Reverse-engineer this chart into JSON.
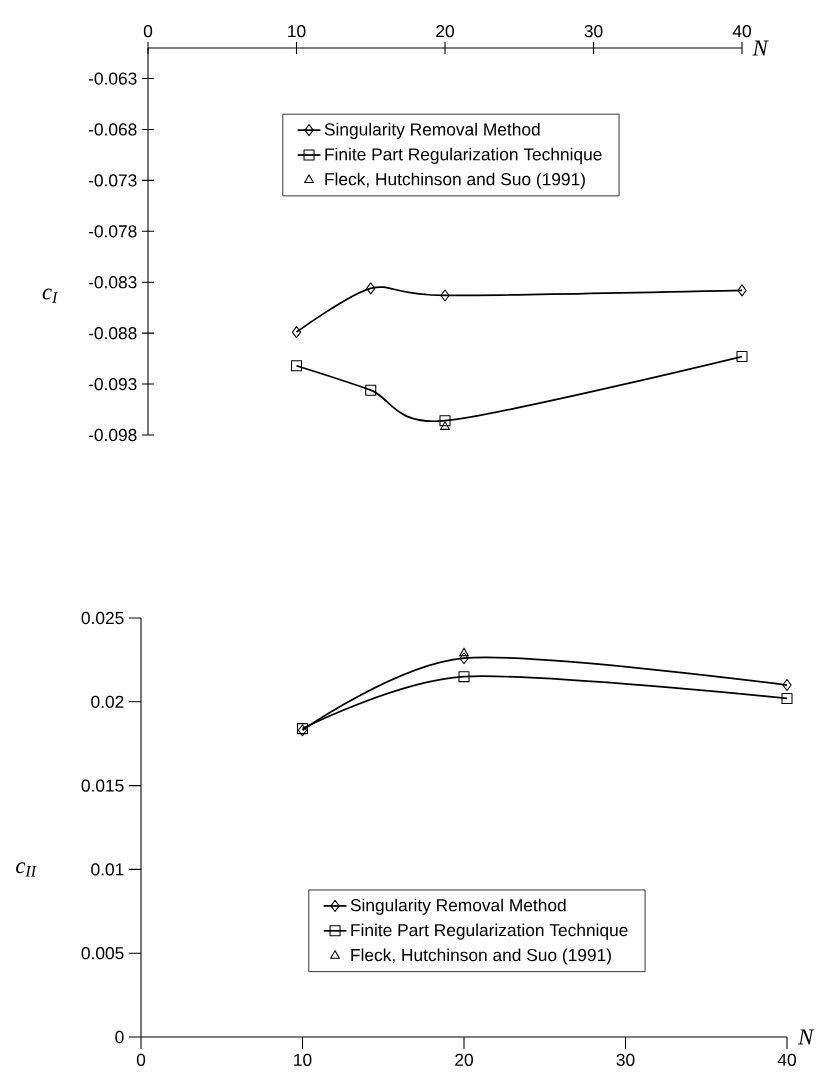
{
  "chart_data": [
    {
      "type": "line",
      "xlabel": "N",
      "ylabel": "c$_{I}$",
      "xlim": [
        0,
        40
      ],
      "xticks": [
        0,
        10,
        20,
        30,
        40
      ],
      "ylim": [
        -0.098,
        -0.06
      ],
      "yticks": [
        -0.098,
        -0.093,
        -0.088,
        -0.083,
        -0.078,
        -0.073,
        -0.068,
        -0.063
      ],
      "legend": "top",
      "series": [
        {
          "name": "Singularity Removal Method",
          "color": "#000000",
          "marker": "diamond",
          "x": [
            10,
            15,
            20,
            40
          ],
          "values": [
            -0.0879,
            -0.0836,
            -0.0843,
            -0.0838
          ]
        },
        {
          "name": "Finite Part  Regularization Technique",
          "color": "#000000",
          "marker": "square",
          "x": [
            10,
            15,
            20,
            40
          ],
          "values": [
            -0.0912,
            -0.0936,
            -0.0966,
            -0.0903
          ]
        },
        {
          "name": "Fleck, Hutchinson and Suo (1991)",
          "type": "scatter",
          "color": "#000000",
          "marker": "triangle",
          "x": [
            20
          ],
          "values": [
            -0.0972
          ]
        }
      ]
    },
    {
      "type": "line",
      "xlabel": "N",
      "ylabel": "c$_{II}$",
      "xlim": [
        0,
        40
      ],
      "xticks": [
        0,
        10,
        20,
        30,
        40
      ],
      "ylim": [
        0,
        0.025
      ],
      "yticks": [
        0,
        0.005,
        0.01,
        0.015,
        0.02,
        0.025
      ],
      "legend": "bottom",
      "series": [
        {
          "name": "Singularity Removal Method",
          "color": "#000000",
          "marker": "diamond",
          "x": [
            10,
            20,
            40
          ],
          "values": [
            0.0183,
            0.0226,
            0.021
          ]
        },
        {
          "name": "Finite Part  Regularization Technique",
          "color": "#000000",
          "marker": "square",
          "x": [
            10,
            20,
            40
          ],
          "values": [
            0.0184,
            0.0215,
            0.0202
          ]
        },
        {
          "name": "Fleck, Hutchinson and Suo (1991)",
          "type": "scatter",
          "color": "#000000",
          "marker": "triangle",
          "x": [
            20
          ],
          "values": [
            0.0229
          ]
        }
      ]
    }
  ]
}
